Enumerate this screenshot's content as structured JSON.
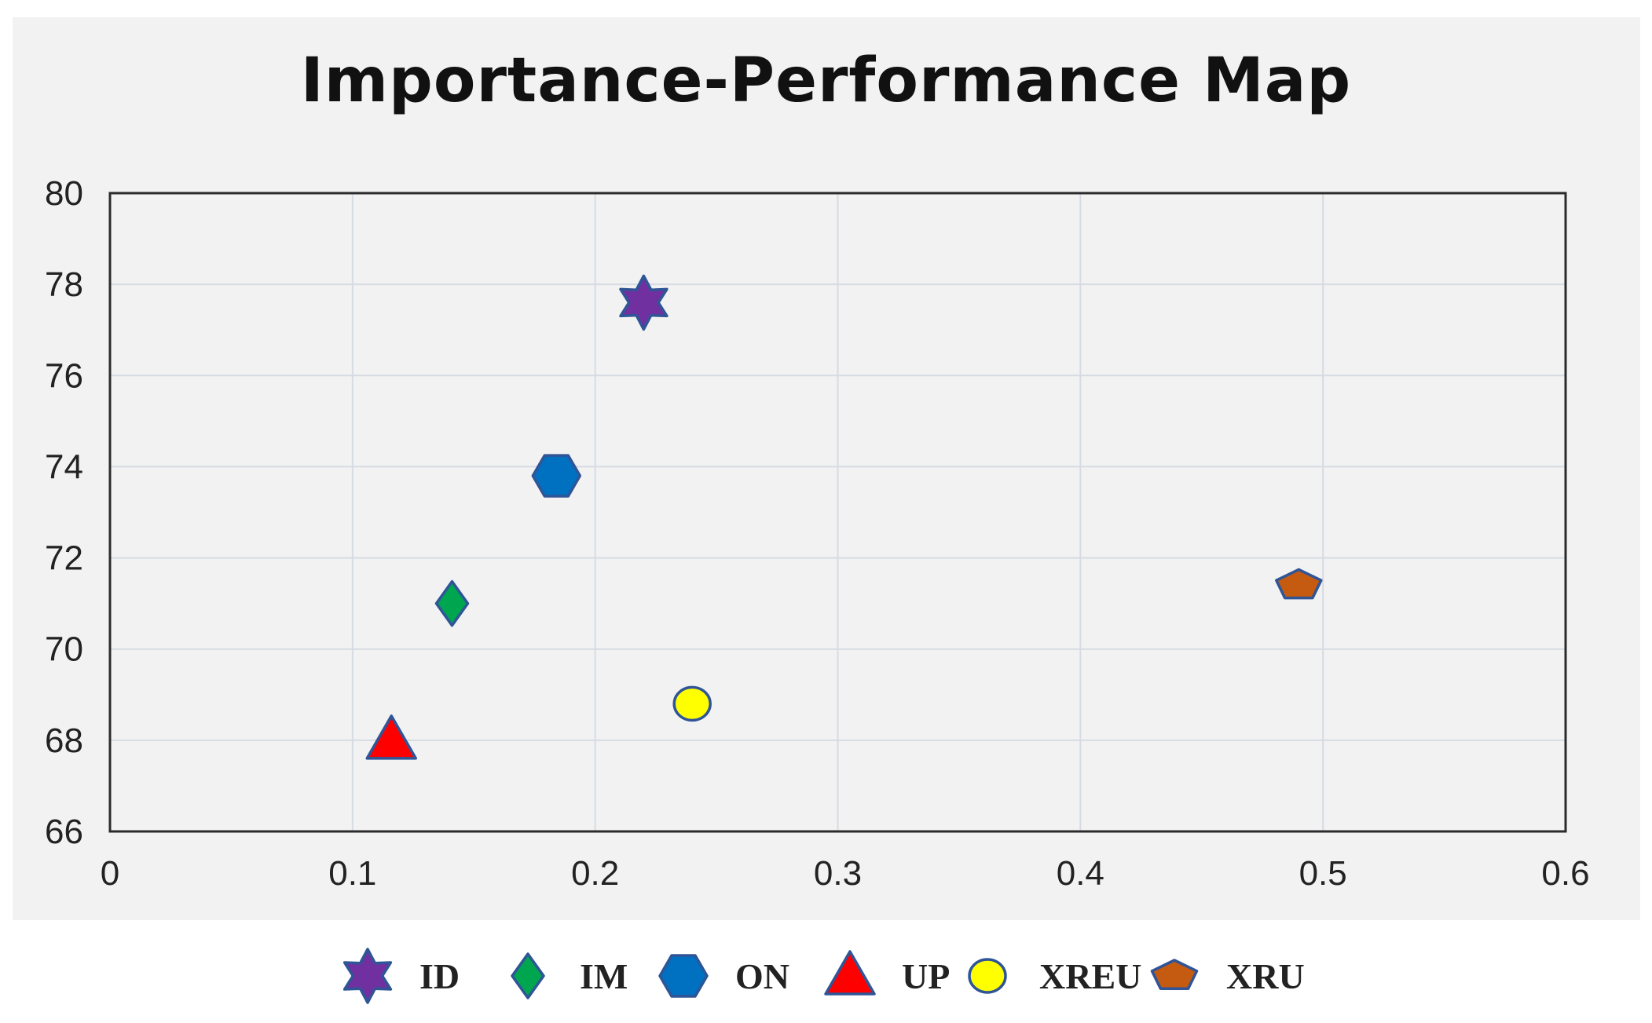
{
  "chart_data": {
    "type": "scatter",
    "title": "Importance-Performance Map",
    "xlabel": "",
    "ylabel": "",
    "xlim": [
      0,
      0.6
    ],
    "ylim": [
      66,
      80
    ],
    "x_ticks": [
      "0",
      "0.1",
      "0.2",
      "0.3",
      "0.4",
      "0.5",
      "0.6"
    ],
    "y_ticks": [
      "66",
      "68",
      "70",
      "72",
      "74",
      "76",
      "78",
      "80"
    ],
    "grid": true,
    "legend_position": "bottom",
    "series": [
      {
        "name": "ID",
        "x": 0.22,
        "y": 77.6,
        "marker": "star6",
        "color": "#7030a0"
      },
      {
        "name": "IM",
        "x": 0.141,
        "y": 71.0,
        "marker": "diamond",
        "color": "#00a550"
      },
      {
        "name": "ON",
        "x": 0.184,
        "y": 73.8,
        "marker": "hexagon",
        "color": "#0070c0"
      },
      {
        "name": "UP",
        "x": 0.116,
        "y": 68.0,
        "marker": "triangle",
        "color": "#ff0000"
      },
      {
        "name": "XREU",
        "x": 0.24,
        "y": 68.8,
        "marker": "circle",
        "color": "#ffff00"
      },
      {
        "name": "XRU",
        "x": 0.49,
        "y": 71.4,
        "marker": "pentagon",
        "color": "#c55a11"
      }
    ],
    "marker_outline": "#2f5597"
  }
}
